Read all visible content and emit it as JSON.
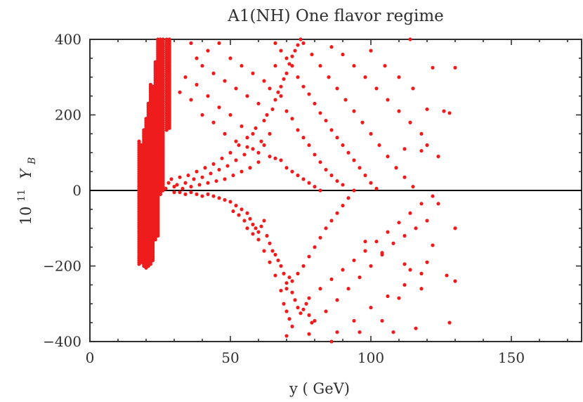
{
  "chart_data": {
    "type": "scatter",
    "title": "A1(NH) One flavor regime",
    "xlabel": "y ( GeV)",
    "ylabel_prefix": "10",
    "ylabel_exponent": "11",
    "ylabel_symbol": "Y",
    "ylabel_subscript": "B",
    "xlim": [
      0,
      175
    ],
    "ylim": [
      -400,
      400
    ],
    "x_ticks": [
      {
        "value": 0,
        "label": "0"
      },
      {
        "value": 50,
        "label": "50"
      },
      {
        "value": 100,
        "label": "100"
      },
      {
        "value": 150,
        "label": "150"
      }
    ],
    "y_ticks": [
      {
        "value": -400,
        "label": "−400"
      },
      {
        "value": -200,
        "label": "−200"
      },
      {
        "value": 0,
        "label": "0"
      },
      {
        "value": 200,
        "label": "200"
      },
      {
        "value": 400,
        "label": "400"
      }
    ],
    "zero_line": true,
    "grid": false,
    "series": [
      {
        "color": "#ee1c1c",
        "columns": [
          {
            "x": 17.5,
            "y": [
              -195,
              130
            ]
          },
          {
            "x": 18.3,
            "y": [
              -190,
              120
            ]
          },
          {
            "x": 19.2,
            "y": [
              -200,
              160
            ]
          },
          {
            "x": 20.0,
            "y": [
              -205,
              190
            ]
          },
          {
            "x": 20.8,
            "y": [
              -200,
              230
            ]
          },
          {
            "x": 21.6,
            "y": [
              -195,
              280
            ]
          },
          {
            "x": 22.4,
            "y": [
              -185,
              275
            ]
          },
          {
            "x": 23.3,
            "y": [
              -130,
              340
            ]
          },
          {
            "x": 24.2,
            "y": [
              -120,
              400
            ]
          },
          {
            "x": 25.1,
            "y": [
              -10,
              400
            ]
          },
          {
            "x": 26.0,
            "y": [
              0,
              400
            ]
          },
          {
            "x": 27.3,
            "y": [
              160,
              400
            ]
          },
          {
            "x": 28.3,
            "y": [
              165,
              400
            ]
          }
        ],
        "points": [
          [
            27,
            5
          ],
          [
            28,
            20
          ],
          [
            29,
            30
          ],
          [
            30,
            10
          ],
          [
            31,
            15
          ],
          [
            32,
            35
          ],
          [
            33,
            5
          ],
          [
            34,
            20
          ],
          [
            35,
            40
          ],
          [
            36,
            10
          ],
          [
            37,
            30
          ],
          [
            38,
            50
          ],
          [
            39,
            15
          ],
          [
            40,
            35
          ],
          [
            41,
            60
          ],
          [
            42,
            20
          ],
          [
            43,
            45
          ],
          [
            44,
            70
          ],
          [
            45,
            25
          ],
          [
            46,
            55
          ],
          [
            47,
            85
          ],
          [
            48,
            30
          ],
          [
            49,
            65
          ],
          [
            50,
            100
          ],
          [
            51,
            40
          ],
          [
            52,
            80
          ],
          [
            53,
            120
          ],
          [
            54,
            50
          ],
          [
            55,
            95
          ],
          [
            56,
            140
          ],
          [
            57,
            60
          ],
          [
            58,
            110
          ],
          [
            59,
            165
          ],
          [
            60,
            75
          ],
          [
            61,
            130
          ],
          [
            62,
            185
          ],
          [
            63,
            200
          ],
          [
            64,
            150
          ],
          [
            65,
            215
          ],
          [
            66,
            240
          ],
          [
            67,
            260
          ],
          [
            68,
            275
          ],
          [
            69,
            295
          ],
          [
            70,
            310
          ],
          [
            71,
            335
          ],
          [
            72,
            355
          ],
          [
            73,
            370
          ],
          [
            74,
            385
          ],
          [
            75,
            400
          ],
          [
            30,
            -5
          ],
          [
            32,
            -5
          ],
          [
            34,
            -10
          ],
          [
            36,
            -5
          ],
          [
            38,
            -10
          ],
          [
            40,
            -15
          ],
          [
            42,
            -10
          ],
          [
            44,
            -15
          ],
          [
            46,
            -20
          ],
          [
            48,
            -25
          ],
          [
            50,
            -30
          ],
          [
            52,
            -40
          ],
          [
            54,
            -50
          ],
          [
            56,
            -60
          ],
          [
            57,
            -75
          ],
          [
            58,
            -90
          ],
          [
            59,
            -100
          ],
          [
            60,
            -110
          ],
          [
            61,
            -95
          ],
          [
            62,
            -80
          ],
          [
            63,
            -120
          ],
          [
            64,
            -140
          ],
          [
            65,
            -160
          ],
          [
            66,
            -170
          ],
          [
            67,
            -185
          ],
          [
            68,
            -200
          ],
          [
            69,
            -220
          ],
          [
            70,
            -245
          ],
          [
            71,
            -230
          ],
          [
            72,
            -270
          ],
          [
            73,
            -290
          ],
          [
            74,
            -310
          ],
          [
            75,
            -325
          ],
          [
            76,
            -315
          ],
          [
            77,
            -300
          ],
          [
            78,
            -330
          ],
          [
            79,
            -350
          ],
          [
            69,
            -300
          ],
          [
            70,
            -320
          ],
          [
            71,
            -340
          ],
          [
            72,
            -360
          ],
          [
            70,
            -385
          ],
          [
            68,
            -265
          ],
          [
            66,
            -225
          ],
          [
            64,
            -190
          ],
          [
            62,
            -160
          ],
          [
            60,
            -130
          ],
          [
            58,
            -115
          ],
          [
            56,
            -100
          ],
          [
            55,
            -80
          ],
          [
            53,
            -65
          ],
          [
            51,
            -55
          ],
          [
            32,
            260
          ],
          [
            34,
            300
          ],
          [
            36,
            240
          ],
          [
            38,
            280
          ],
          [
            40,
            200
          ],
          [
            42,
            250
          ],
          [
            44,
            180
          ],
          [
            46,
            220
          ],
          [
            48,
            150
          ],
          [
            50,
            200
          ],
          [
            52,
            130
          ],
          [
            54,
            170
          ],
          [
            56,
            115
          ],
          [
            58,
            150
          ],
          [
            60,
            100
          ],
          [
            62,
            120
          ],
          [
            64,
            90
          ],
          [
            66,
            85
          ],
          [
            68,
            80
          ],
          [
            70,
            60
          ],
          [
            72,
            50
          ],
          [
            74,
            40
          ],
          [
            76,
            30
          ],
          [
            78,
            20
          ],
          [
            80,
            10
          ],
          [
            82,
            0
          ],
          [
            36,
            390
          ],
          [
            38,
            350
          ],
          [
            40,
            330
          ],
          [
            42,
            370
          ],
          [
            44,
            310
          ],
          [
            46,
            390
          ],
          [
            48,
            290
          ],
          [
            50,
            350
          ],
          [
            52,
            270
          ],
          [
            54,
            330
          ],
          [
            56,
            250
          ],
          [
            58,
            310
          ],
          [
            60,
            230
          ],
          [
            62,
            290
          ],
          [
            64,
            270
          ],
          [
            66,
            330
          ],
          [
            68,
            250
          ],
          [
            70,
            210
          ],
          [
            72,
            190
          ],
          [
            74,
            160
          ],
          [
            76,
            140
          ],
          [
            78,
            120
          ],
          [
            80,
            95
          ],
          [
            82,
            75
          ],
          [
            84,
            55
          ],
          [
            86,
            40
          ],
          [
            88,
            25
          ],
          [
            90,
            15
          ],
          [
            66,
            390
          ],
          [
            68,
            370
          ],
          [
            70,
            350
          ],
          [
            72,
            330
          ],
          [
            74,
            300
          ],
          [
            76,
            275
          ],
          [
            78,
            255
          ],
          [
            80,
            230
          ],
          [
            82,
            205
          ],
          [
            84,
            185
          ],
          [
            86,
            160
          ],
          [
            88,
            140
          ],
          [
            90,
            120
          ],
          [
            92,
            100
          ],
          [
            94,
            80
          ],
          [
            96,
            60
          ],
          [
            98,
            40
          ],
          [
            100,
            20
          ],
          [
            102,
            5
          ],
          [
            76,
            390
          ],
          [
            79,
            360
          ],
          [
            82,
            330
          ],
          [
            85,
            300
          ],
          [
            88,
            270
          ],
          [
            91,
            240
          ],
          [
            94,
            210
          ],
          [
            97,
            180
          ],
          [
            100,
            150
          ],
          [
            103,
            120
          ],
          [
            106,
            90
          ],
          [
            109,
            60
          ],
          [
            112,
            35
          ],
          [
            115,
            10
          ],
          [
            86,
            380
          ],
          [
            90,
            360
          ],
          [
            94,
            330
          ],
          [
            98,
            300
          ],
          [
            102,
            270
          ],
          [
            106,
            240
          ],
          [
            110,
            210
          ],
          [
            114,
            180
          ],
          [
            118,
            150
          ],
          [
            120,
            120
          ],
          [
            124,
            90
          ],
          [
            100,
            370
          ],
          [
            105,
            330
          ],
          [
            110,
            300
          ],
          [
            115,
            270
          ],
          [
            120,
            215
          ],
          [
            122,
            325
          ],
          [
            126,
            210
          ],
          [
            130,
            325
          ],
          [
            128,
            205
          ],
          [
            118,
            105
          ],
          [
            112,
            110
          ],
          [
            114,
            400
          ],
          [
            70,
            -260
          ],
          [
            72,
            -240
          ],
          [
            74,
            -220
          ],
          [
            76,
            -200
          ],
          [
            78,
            -175
          ],
          [
            80,
            -150
          ],
          [
            82,
            -125
          ],
          [
            84,
            -100
          ],
          [
            86,
            -80
          ],
          [
            88,
            -60
          ],
          [
            90,
            -40
          ],
          [
            92,
            -20
          ],
          [
            94,
            0
          ],
          [
            78,
            -285
          ],
          [
            82,
            -260
          ],
          [
            86,
            -235
          ],
          [
            90,
            -210
          ],
          [
            94,
            -185
          ],
          [
            98,
            -160
          ],
          [
            102,
            -135
          ],
          [
            106,
            -110
          ],
          [
            110,
            -85
          ],
          [
            114,
            -60
          ],
          [
            118,
            -35
          ],
          [
            122,
            -15
          ],
          [
            80,
            -345
          ],
          [
            84,
            -320
          ],
          [
            88,
            -290
          ],
          [
            92,
            -260
          ],
          [
            96,
            -230
          ],
          [
            100,
            -200
          ],
          [
            104,
            -170
          ],
          [
            108,
            -140
          ],
          [
            112,
            -120
          ],
          [
            116,
            -100
          ],
          [
            120,
            -80
          ],
          [
            124,
            -35
          ],
          [
            130,
            -100
          ],
          [
            88,
            -375
          ],
          [
            94,
            -345
          ],
          [
            100,
            -310
          ],
          [
            106,
            -280
          ],
          [
            112,
            -250
          ],
          [
            118,
            -220
          ],
          [
            122,
            -145
          ],
          [
            127,
            -225
          ],
          [
            130,
            -240
          ],
          [
            112,
            -195
          ],
          [
            104,
            -165
          ],
          [
            98,
            -135
          ],
          [
            96,
            -375
          ],
          [
            104,
            -345
          ],
          [
            110,
            -285
          ],
          [
            118,
            -260
          ],
          [
            108,
            -375
          ],
          [
            116,
            -365
          ],
          [
            128,
            -350
          ],
          [
            120,
            -190
          ],
          [
            114,
            -210
          ],
          [
            86,
            -400
          ],
          [
            78,
            -380
          ]
        ]
      }
    ]
  }
}
